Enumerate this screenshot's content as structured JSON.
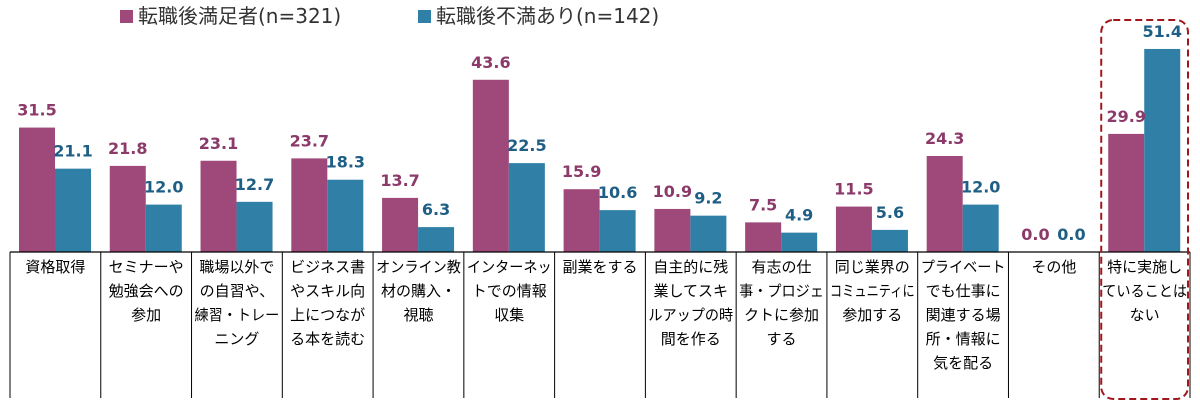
{
  "chart_data": {
    "type": "bar",
    "series": [
      {
        "name": "転職後満足者(n=321)",
        "color": "#9E4979",
        "label_color": "#8B3A6A",
        "values": [
          31.5,
          21.8,
          23.1,
          23.7,
          13.7,
          43.6,
          15.9,
          10.9,
          7.5,
          11.5,
          24.3,
          0.0,
          29.9
        ]
      },
      {
        "name": "転職後不満あり(n=142)",
        "color": "#2F7FA6",
        "label_color": "#1F5F86",
        "values": [
          21.1,
          12.0,
          12.7,
          18.3,
          6.3,
          22.5,
          10.6,
          9.2,
          4.9,
          5.6,
          12.0,
          0.0,
          51.4
        ]
      }
    ],
    "categories": [
      [
        "資格取得"
      ],
      [
        "セミナーや",
        "勉強会への",
        "参加"
      ],
      [
        "職場以外で",
        "の自習や、",
        "練習・トレー",
        "ニング"
      ],
      [
        "ビジネス書",
        "やスキル向",
        "上につなが",
        "る本を読む"
      ],
      [
        "オンライン教",
        "材の購入・",
        "視聴"
      ],
      [
        "インターネッ",
        "トでの情報",
        "収集"
      ],
      [
        "副業をする"
      ],
      [
        "自主的に残",
        "業してスキ",
        "ルアップの時",
        "間を作る"
      ],
      [
        "有志の仕",
        "事・プロジェ",
        "クトに参加",
        "する"
      ],
      [
        "同じ業界の",
        "コミュニティに",
        "参加する"
      ],
      [
        "プライベート",
        "でも仕事に",
        "関連する場",
        "所・情報に",
        "気を配る"
      ],
      [
        "その他"
      ],
      [
        "特に実施し",
        "ていることは",
        "ない"
      ]
    ],
    "ylim": [
      0,
      60
    ],
    "highlight_category_index": 12
  }
}
